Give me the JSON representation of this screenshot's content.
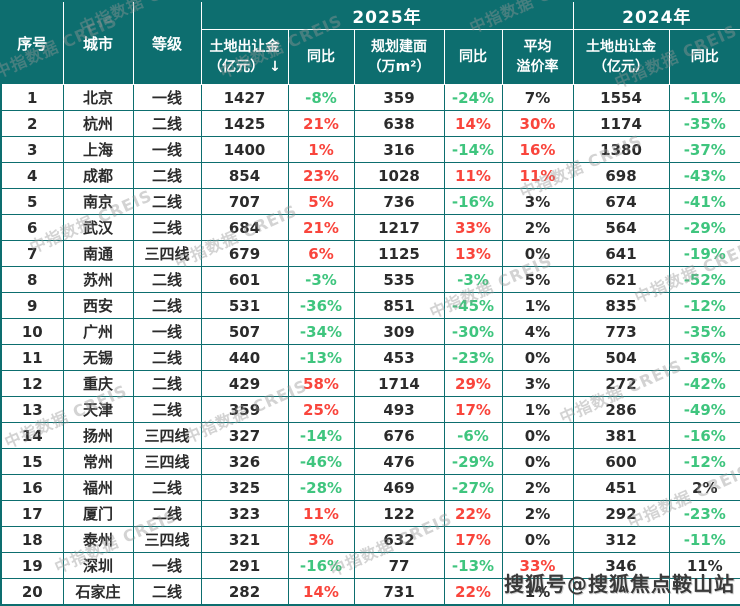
{
  "colors": {
    "teal_header": "#0D6E6F",
    "positive_red": "#F9453C",
    "negative_green": "#3FC57E",
    "body_text": "#2B2B2B"
  },
  "header": {
    "seq": "序号",
    "city": "城市",
    "tier": "等级",
    "year_2025": "2025年",
    "year_2024": "2024年",
    "fee_2025_line1": "土地出让金",
    "fee_2025_line2": "（亿元）",
    "sort_icon": "↓",
    "yoy": "同比",
    "area_line1": "规划建面",
    "area_line2": "（万m²）",
    "premium_line1": "平均",
    "premium_line2": "溢价率",
    "fee_2024_line1": "土地出让金",
    "fee_2024_line2": "（亿元）"
  },
  "watermarks": {
    "creis": "中指数据 CREIS",
    "sohu": "搜狐号@搜狐焦点鞍山站"
  },
  "chart_data": {
    "type": "table",
    "columns": [
      "序号",
      "城市",
      "等级",
      "2025年土地出让金（亿元）",
      "2025年土地出让金同比",
      "2025年规划建面（万m²）",
      "2025年规划建面同比",
      "2025年平均溢价率",
      "2024年土地出让金（亿元）",
      "2024年土地出让金同比"
    ],
    "rows": [
      {
        "seq": "1",
        "city": "北京",
        "tier": "一线",
        "fee25": "1427",
        "fee25_yoy": "-8%",
        "fee25_yoy_color": "green",
        "area": "359",
        "area_yoy": "-24%",
        "area_yoy_color": "green",
        "premium": "7%",
        "premium_color": "dark",
        "fee24": "1554",
        "fee24_yoy": "-11%",
        "fee24_yoy_color": "green"
      },
      {
        "seq": "2",
        "city": "杭州",
        "tier": "二线",
        "fee25": "1425",
        "fee25_yoy": "21%",
        "fee25_yoy_color": "red",
        "area": "638",
        "area_yoy": "14%",
        "area_yoy_color": "red",
        "premium": "30%",
        "premium_color": "red",
        "fee24": "1174",
        "fee24_yoy": "-35%",
        "fee24_yoy_color": "green"
      },
      {
        "seq": "3",
        "city": "上海",
        "tier": "一线",
        "fee25": "1400",
        "fee25_yoy": "1%",
        "fee25_yoy_color": "red",
        "area": "316",
        "area_yoy": "-14%",
        "area_yoy_color": "green",
        "premium": "16%",
        "premium_color": "red",
        "fee24": "1380",
        "fee24_yoy": "-37%",
        "fee24_yoy_color": "green"
      },
      {
        "seq": "4",
        "city": "成都",
        "tier": "二线",
        "fee25": "854",
        "fee25_yoy": "23%",
        "fee25_yoy_color": "red",
        "area": "1028",
        "area_yoy": "11%",
        "area_yoy_color": "red",
        "premium": "11%",
        "premium_color": "red",
        "fee24": "698",
        "fee24_yoy": "-43%",
        "fee24_yoy_color": "green"
      },
      {
        "seq": "5",
        "city": "南京",
        "tier": "二线",
        "fee25": "707",
        "fee25_yoy": "5%",
        "fee25_yoy_color": "red",
        "area": "736",
        "area_yoy": "-16%",
        "area_yoy_color": "green",
        "premium": "3%",
        "premium_color": "dark",
        "fee24": "674",
        "fee24_yoy": "-41%",
        "fee24_yoy_color": "green"
      },
      {
        "seq": "6",
        "city": "武汉",
        "tier": "二线",
        "fee25": "684",
        "fee25_yoy": "21%",
        "fee25_yoy_color": "red",
        "area": "1217",
        "area_yoy": "33%",
        "area_yoy_color": "red",
        "premium": "2%",
        "premium_color": "dark",
        "fee24": "564",
        "fee24_yoy": "-29%",
        "fee24_yoy_color": "green"
      },
      {
        "seq": "7",
        "city": "南通",
        "tier": "三四线",
        "fee25": "679",
        "fee25_yoy": "6%",
        "fee25_yoy_color": "red",
        "area": "1125",
        "area_yoy": "13%",
        "area_yoy_color": "red",
        "premium": "0%",
        "premium_color": "dark",
        "fee24": "641",
        "fee24_yoy": "-19%",
        "fee24_yoy_color": "green"
      },
      {
        "seq": "8",
        "city": "苏州",
        "tier": "二线",
        "fee25": "601",
        "fee25_yoy": "-3%",
        "fee25_yoy_color": "green",
        "area": "535",
        "area_yoy": "-3%",
        "area_yoy_color": "green",
        "premium": "5%",
        "premium_color": "dark",
        "fee24": "621",
        "fee24_yoy": "-52%",
        "fee24_yoy_color": "green"
      },
      {
        "seq": "9",
        "city": "西安",
        "tier": "二线",
        "fee25": "531",
        "fee25_yoy": "-36%",
        "fee25_yoy_color": "green",
        "area": "851",
        "area_yoy": "-45%",
        "area_yoy_color": "green",
        "premium": "1%",
        "premium_color": "dark",
        "fee24": "835",
        "fee24_yoy": "-12%",
        "fee24_yoy_color": "green"
      },
      {
        "seq": "10",
        "city": "广州",
        "tier": "一线",
        "fee25": "507",
        "fee25_yoy": "-34%",
        "fee25_yoy_color": "green",
        "area": "309",
        "area_yoy": "-30%",
        "area_yoy_color": "green",
        "premium": "4%",
        "premium_color": "dark",
        "fee24": "773",
        "fee24_yoy": "-35%",
        "fee24_yoy_color": "green"
      },
      {
        "seq": "11",
        "city": "无锡",
        "tier": "二线",
        "fee25": "440",
        "fee25_yoy": "-13%",
        "fee25_yoy_color": "green",
        "area": "453",
        "area_yoy": "-23%",
        "area_yoy_color": "green",
        "premium": "0%",
        "premium_color": "dark",
        "fee24": "504",
        "fee24_yoy": "-36%",
        "fee24_yoy_color": "green"
      },
      {
        "seq": "12",
        "city": "重庆",
        "tier": "二线",
        "fee25": "429",
        "fee25_yoy": "58%",
        "fee25_yoy_color": "red",
        "area": "1714",
        "area_yoy": "29%",
        "area_yoy_color": "red",
        "premium": "3%",
        "premium_color": "dark",
        "fee24": "272",
        "fee24_yoy": "-42%",
        "fee24_yoy_color": "green"
      },
      {
        "seq": "13",
        "city": "天津",
        "tier": "二线",
        "fee25": "359",
        "fee25_yoy": "25%",
        "fee25_yoy_color": "red",
        "area": "493",
        "area_yoy": "17%",
        "area_yoy_color": "red",
        "premium": "1%",
        "premium_color": "dark",
        "fee24": "286",
        "fee24_yoy": "-49%",
        "fee24_yoy_color": "green"
      },
      {
        "seq": "14",
        "city": "扬州",
        "tier": "三四线",
        "fee25": "327",
        "fee25_yoy": "-14%",
        "fee25_yoy_color": "green",
        "area": "676",
        "area_yoy": "-6%",
        "area_yoy_color": "green",
        "premium": "0%",
        "premium_color": "dark",
        "fee24": "381",
        "fee24_yoy": "-16%",
        "fee24_yoy_color": "green"
      },
      {
        "seq": "15",
        "city": "常州",
        "tier": "三四线",
        "fee25": "326",
        "fee25_yoy": "-46%",
        "fee25_yoy_color": "green",
        "area": "476",
        "area_yoy": "-29%",
        "area_yoy_color": "green",
        "premium": "0%",
        "premium_color": "dark",
        "fee24": "600",
        "fee24_yoy": "-12%",
        "fee24_yoy_color": "green"
      },
      {
        "seq": "16",
        "city": "福州",
        "tier": "二线",
        "fee25": "325",
        "fee25_yoy": "-28%",
        "fee25_yoy_color": "green",
        "area": "469",
        "area_yoy": "-27%",
        "area_yoy_color": "green",
        "premium": "2%",
        "premium_color": "dark",
        "fee24": "451",
        "fee24_yoy": "2%",
        "fee24_yoy_color": "dark"
      },
      {
        "seq": "17",
        "city": "厦门",
        "tier": "二线",
        "fee25": "323",
        "fee25_yoy": "11%",
        "fee25_yoy_color": "red",
        "area": "122",
        "area_yoy": "22%",
        "area_yoy_color": "red",
        "premium": "2%",
        "premium_color": "dark",
        "fee24": "292",
        "fee24_yoy": "-23%",
        "fee24_yoy_color": "green"
      },
      {
        "seq": "18",
        "city": "泰州",
        "tier": "三四线",
        "fee25": "321",
        "fee25_yoy": "3%",
        "fee25_yoy_color": "red",
        "area": "632",
        "area_yoy": "17%",
        "area_yoy_color": "red",
        "premium": "0%",
        "premium_color": "dark",
        "fee24": "312",
        "fee24_yoy": "-11%",
        "fee24_yoy_color": "green"
      },
      {
        "seq": "19",
        "city": "深圳",
        "tier": "一线",
        "fee25": "291",
        "fee25_yoy": "-16%",
        "fee25_yoy_color": "green",
        "area": "77",
        "area_yoy": "-13%",
        "area_yoy_color": "green",
        "premium": "33%",
        "premium_color": "red",
        "fee24": "346",
        "fee24_yoy": "11%",
        "fee24_yoy_color": "dark"
      },
      {
        "seq": "20",
        "city": "石家庄",
        "tier": "二线",
        "fee25": "282",
        "fee25_yoy": "14%",
        "fee25_yoy_color": "red",
        "area": "731",
        "area_yoy": "22%",
        "area_yoy_color": "red",
        "premium": "1%",
        "premium_color": "dark",
        "fee24": "",
        "fee24_yoy": "",
        "fee24_yoy_color": "dark"
      }
    ]
  }
}
